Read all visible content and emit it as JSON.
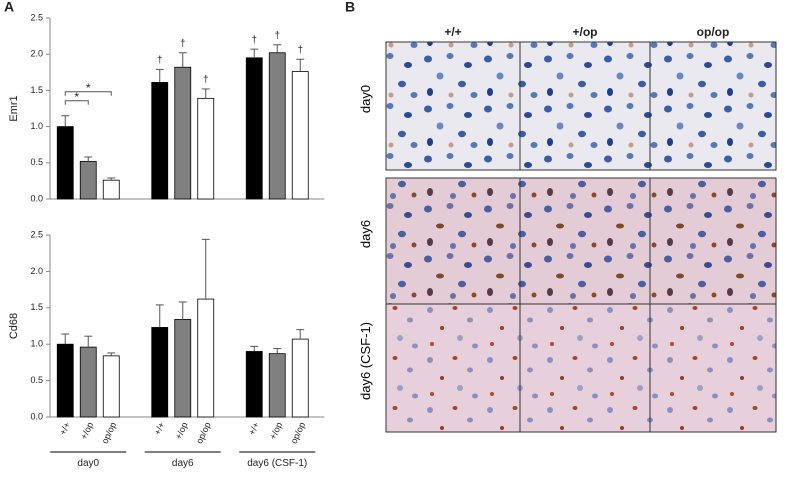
{
  "panel_labels": {
    "a": "A",
    "b": "B"
  },
  "chart_data": [
    {
      "type": "bar",
      "y_label": "Emr1",
      "categories": [
        null,
        null,
        null
      ],
      "ylim": [
        0,
        2.5
      ],
      "yticks": [
        {
          "value": 0,
          "label": "0.0"
        },
        0.5,
        {
          "value": 1,
          "label": "1.0"
        },
        1.5,
        {
          "value": 2,
          "label": "2.0"
        },
        2.5
      ],
      "series": [
        {
          "color": "#000000",
          "values": [
            1.0,
            1.61,
            1.95
          ],
          "errors": [
            0.15,
            0.18,
            0.12
          ],
          "markers": [
            null,
            "†",
            "†"
          ]
        },
        {
          "color": "#808080",
          "values": [
            0.52,
            1.82,
            2.02
          ],
          "errors": [
            0.06,
            0.2,
            0.11
          ],
          "markers": [
            null,
            "†",
            "†"
          ]
        },
        {
          "color": "#ffffff",
          "values": [
            0.26,
            1.39,
            1.76
          ],
          "errors": [
            0.03,
            0.13,
            0.17
          ],
          "markers": [
            null,
            "†",
            "†"
          ]
        }
      ],
      "comparisons": [
        {
          "label": "*",
          "category": 0,
          "series": [
            0,
            1
          ]
        },
        {
          "label": "*",
          "category": 0,
          "series": [
            0,
            2
          ]
        }
      ]
    },
    {
      "type": "bar",
      "y_label": "Cd68",
      "categories": [
        "day0",
        "day6",
        "day6 (CSF-1)"
      ],
      "ylim": [
        0,
        2.5
      ],
      "yticks": [
        {
          "value": 0,
          "label": "0.0"
        },
        0.5,
        {
          "value": 1,
          "label": "1.0"
        },
        1.5,
        {
          "value": 2,
          "label": "2.0"
        },
        2.5
      ],
      "series": [
        {
          "name": "+/+",
          "color": "#000000",
          "values": [
            1.0,
            1.23,
            0.9
          ],
          "errors": [
            0.14,
            0.31,
            0.07
          ]
        },
        {
          "name": "+/op",
          "color": "#808080",
          "values": [
            0.96,
            1.34,
            0.87
          ],
          "errors": [
            0.15,
            0.24,
            0.07
          ]
        },
        {
          "name": "op/op",
          "color": "#ffffff",
          "values": [
            0.84,
            1.62,
            1.07
          ],
          "errors": [
            0.04,
            0.82,
            0.13
          ]
        }
      ]
    }
  ],
  "micrographs": {
    "columns": [
      "+/+",
      "+/op",
      "op/op"
    ],
    "rows": [
      "day0",
      "day6",
      "day6 (CSF-1)"
    ]
  }
}
